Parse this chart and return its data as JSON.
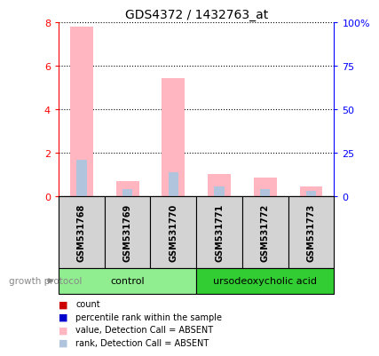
{
  "title": "GDS4372 / 1432763_at",
  "samples": [
    "GSM531768",
    "GSM531769",
    "GSM531770",
    "GSM531771",
    "GSM531772",
    "GSM531773"
  ],
  "value_absent": [
    7.8,
    0.7,
    5.45,
    1.05,
    0.85,
    0.45
  ],
  "rank_absent": [
    1.7,
    0.35,
    1.1,
    0.45,
    0.35,
    0.25
  ],
  "ylim_left": [
    0,
    8
  ],
  "ylim_right": [
    0,
    100
  ],
  "yticks_left": [
    0,
    2,
    4,
    6,
    8
  ],
  "yticks_right": [
    0,
    25,
    50,
    75,
    100
  ],
  "yticklabels_right": [
    "0",
    "25",
    "50",
    "75",
    "100%"
  ],
  "color_value_absent": "#FFB6C1",
  "color_rank_absent": "#B0C4DE",
  "color_value_present": "#FF0000",
  "color_rank_present": "#0000CC",
  "bg_sample_row": "#D3D3D3",
  "bg_control": "#90EE90",
  "bg_treatment": "#32CD32",
  "legend_items": [
    {
      "color": "#CC0000",
      "label": "count"
    },
    {
      "color": "#0000CC",
      "label": "percentile rank within the sample"
    },
    {
      "color": "#FFB6C1",
      "label": "value, Detection Call = ABSENT"
    },
    {
      "color": "#B0C4DE",
      "label": "rank, Detection Call = ABSENT"
    }
  ],
  "growth_protocol_label": "growth protocol",
  "control_label": "control",
  "treatment_label": "ursodeoxycholic acid",
  "n_control": 3,
  "n_treatment": 3
}
